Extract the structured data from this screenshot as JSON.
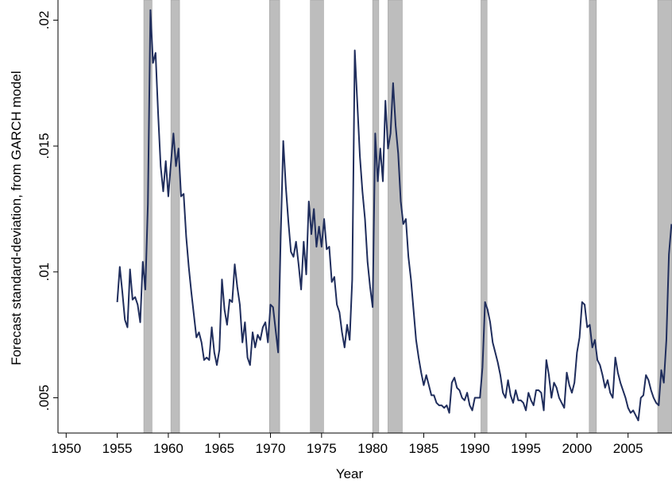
{
  "chart_data": {
    "type": "line",
    "ylabel": "Forecast standard-deviation, from GARCH model",
    "xlabel": "Year",
    "xlim": [
      1949.2,
      2009.3
    ],
    "ylim": [
      0.0036,
      0.0208
    ],
    "xticks": [
      1950,
      1955,
      1960,
      1965,
      1970,
      1975,
      1980,
      1985,
      1990,
      1995,
      2000,
      2005
    ],
    "yticks": [
      {
        "value": 0.005,
        "label": ".005"
      },
      {
        "value": 0.01,
        "label": ".01"
      },
      {
        "value": 0.015,
        "label": ".015"
      },
      {
        "value": 0.02,
        "label": ".02"
      }
    ],
    "recessions": [
      [
        1957.6,
        1958.4
      ],
      [
        1960.25,
        1961.1
      ],
      [
        1969.9,
        1970.9
      ],
      [
        1973.9,
        1975.2
      ],
      [
        1980.0,
        1980.6
      ],
      [
        1981.5,
        1982.9
      ],
      [
        1990.6,
        1991.2
      ],
      [
        2001.2,
        2001.9
      ],
      [
        2007.9,
        2009.3
      ]
    ],
    "recession_color": "#bdbdbd",
    "x": [
      1955,
      1955.25,
      1955.5,
      1955.75,
      1956,
      1956.25,
      1956.5,
      1956.75,
      1957,
      1957.25,
      1957.5,
      1957.75,
      1958,
      1958.25,
      1958.5,
      1958.75,
      1959,
      1959.25,
      1959.5,
      1959.75,
      1960,
      1960.25,
      1960.5,
      1960.75,
      1961,
      1961.25,
      1961.5,
      1961.75,
      1962,
      1962.25,
      1962.5,
      1962.75,
      1963,
      1963.25,
      1963.5,
      1963.75,
      1964,
      1964.25,
      1964.5,
      1964.75,
      1965,
      1965.25,
      1965.5,
      1965.75,
      1966,
      1966.25,
      1966.5,
      1966.75,
      1967,
      1967.25,
      1967.5,
      1967.75,
      1968,
      1968.25,
      1968.5,
      1968.75,
      1969,
      1969.25,
      1969.5,
      1969.75,
      1970,
      1970.25,
      1970.5,
      1970.75,
      1971,
      1971.25,
      1971.5,
      1971.75,
      1972,
      1972.25,
      1972.5,
      1972.75,
      1973,
      1973.25,
      1973.5,
      1973.75,
      1974,
      1974.25,
      1974.5,
      1974.75,
      1975,
      1975.25,
      1975.5,
      1975.75,
      1976,
      1976.25,
      1976.5,
      1976.75,
      1977,
      1977.25,
      1977.5,
      1977.75,
      1978,
      1978.25,
      1978.5,
      1978.75,
      1979,
      1979.25,
      1979.5,
      1979.75,
      1980,
      1980.25,
      1980.5,
      1980.75,
      1981,
      1981.25,
      1981.5,
      1981.75,
      1982,
      1982.25,
      1982.5,
      1982.75,
      1983,
      1983.25,
      1983.5,
      1983.75,
      1984,
      1984.25,
      1984.5,
      1984.75,
      1985,
      1985.25,
      1985.5,
      1985.75,
      1986,
      1986.25,
      1986.5,
      1986.75,
      1987,
      1987.25,
      1987.5,
      1987.75,
      1988,
      1988.25,
      1988.5,
      1988.75,
      1989,
      1989.25,
      1989.5,
      1989.75,
      1990,
      1990.25,
      1990.5,
      1990.75,
      1991,
      1991.25,
      1991.5,
      1991.75,
      1992,
      1992.25,
      1992.5,
      1992.75,
      1993,
      1993.25,
      1993.5,
      1993.75,
      1994,
      1994.25,
      1994.5,
      1994.75,
      1995,
      1995.25,
      1995.5,
      1995.75,
      1996,
      1996.25,
      1996.5,
      1996.75,
      1997,
      1997.25,
      1997.5,
      1997.75,
      1998,
      1998.25,
      1998.5,
      1998.75,
      1999,
      1999.25,
      1999.5,
      1999.75,
      2000,
      2000.25,
      2000.5,
      2000.75,
      2001,
      2001.25,
      2001.5,
      2001.75,
      2002,
      2002.25,
      2002.5,
      2002.75,
      2003,
      2003.25,
      2003.5,
      2003.75,
      2004,
      2004.25,
      2004.5,
      2004.75,
      2005,
      2005.25,
      2005.5,
      2005.75,
      2006,
      2006.25,
      2006.5,
      2006.75,
      2007,
      2007.25,
      2007.5,
      2007.75,
      2008,
      2008.25,
      2008.5,
      2008.75,
      2009,
      2009.25
    ],
    "series": [
      {
        "color": "#1f2d5c",
        "values": [
          0.0088,
          0.0102,
          0.0092,
          0.0081,
          0.0078,
          0.0101,
          0.0089,
          0.009,
          0.0087,
          0.008,
          0.0104,
          0.0093,
          0.0127,
          0.0204,
          0.0183,
          0.0187,
          0.0163,
          0.0142,
          0.0132,
          0.0144,
          0.013,
          0.0143,
          0.0155,
          0.0142,
          0.0149,
          0.013,
          0.0131,
          0.0114,
          0.0102,
          0.0092,
          0.0083,
          0.0074,
          0.0076,
          0.0072,
          0.0065,
          0.0066,
          0.0065,
          0.0078,
          0.0068,
          0.0063,
          0.0069,
          0.0097,
          0.0085,
          0.0079,
          0.0089,
          0.0088,
          0.0103,
          0.0094,
          0.0087,
          0.0072,
          0.008,
          0.0066,
          0.0063,
          0.0076,
          0.007,
          0.0075,
          0.0073,
          0.0078,
          0.008,
          0.0072,
          0.0087,
          0.0086,
          0.0077,
          0.0068,
          0.0114,
          0.0152,
          0.0134,
          0.012,
          0.0108,
          0.0106,
          0.0112,
          0.0103,
          0.0093,
          0.0112,
          0.0099,
          0.0128,
          0.0115,
          0.0125,
          0.011,
          0.0118,
          0.011,
          0.0121,
          0.0109,
          0.011,
          0.0096,
          0.0098,
          0.0087,
          0.0084,
          0.0076,
          0.007,
          0.0079,
          0.0073,
          0.0097,
          0.0188,
          0.0167,
          0.0146,
          0.0132,
          0.0121,
          0.0104,
          0.0094,
          0.0086,
          0.0155,
          0.0136,
          0.0149,
          0.0136,
          0.0168,
          0.0149,
          0.0155,
          0.0175,
          0.0158,
          0.0147,
          0.0128,
          0.0119,
          0.0121,
          0.0106,
          0.0097,
          0.0085,
          0.0073,
          0.0066,
          0.006,
          0.0055,
          0.0059,
          0.0055,
          0.0051,
          0.0051,
          0.0048,
          0.0047,
          0.0047,
          0.0046,
          0.0047,
          0.0044,
          0.0056,
          0.0058,
          0.0054,
          0.0053,
          0.005,
          0.0049,
          0.0052,
          0.0047,
          0.0045,
          0.005,
          0.005,
          0.005,
          0.0062,
          0.0088,
          0.0085,
          0.008,
          0.0072,
          0.0068,
          0.0064,
          0.0059,
          0.0052,
          0.005,
          0.0057,
          0.0051,
          0.0048,
          0.0053,
          0.0049,
          0.0049,
          0.0048,
          0.0045,
          0.0052,
          0.0049,
          0.0047,
          0.0053,
          0.0053,
          0.0052,
          0.0045,
          0.0065,
          0.0059,
          0.005,
          0.0056,
          0.0054,
          0.005,
          0.0048,
          0.0046,
          0.006,
          0.0055,
          0.0052,
          0.0056,
          0.0068,
          0.0074,
          0.0088,
          0.0087,
          0.0078,
          0.0079,
          0.007,
          0.0073,
          0.0065,
          0.0063,
          0.0059,
          0.0054,
          0.0057,
          0.0052,
          0.005,
          0.0066,
          0.006,
          0.0056,
          0.0053,
          0.005,
          0.0046,
          0.0044,
          0.0045,
          0.0043,
          0.0041,
          0.005,
          0.0051,
          0.0059,
          0.0057,
          0.0053,
          0.005,
          0.0048,
          0.0047,
          0.0061,
          0.0056,
          0.0073,
          0.0107,
          0.0119
        ]
      }
    ]
  }
}
